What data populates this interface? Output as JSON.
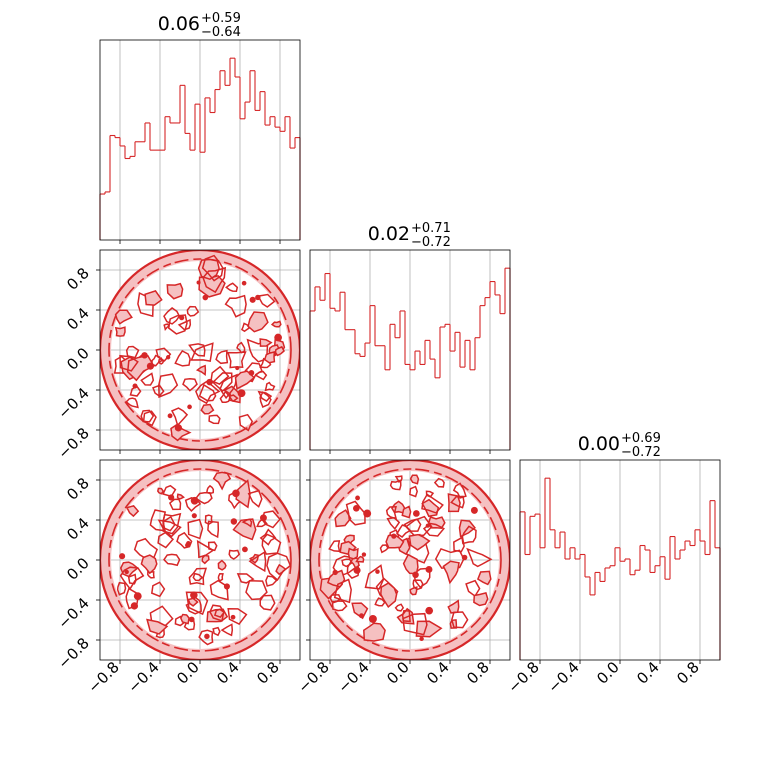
{
  "chart_data": {
    "type": "corner",
    "accent_color": "#d62728",
    "grid": true,
    "axis_range": [
      -1.0,
      1.0
    ],
    "tick_values": [
      -0.8,
      -0.4,
      0.0,
      0.4,
      0.8
    ],
    "tick_labels": [
      "−0.8",
      "−0.4",
      "0.0",
      "0.4",
      "0.8"
    ],
    "histograms": [
      {
        "type": "histogram",
        "title_value": "0.06",
        "title_plus": "+0.59",
        "title_minus": "−0.64",
        "bins": 40,
        "counts": [
          22,
          23,
          50,
          49,
          45,
          39,
          40,
          47,
          47,
          56,
          43,
          43,
          43,
          59,
          56,
          56,
          74,
          51,
          43,
          65,
          42,
          68,
          61,
          72,
          81,
          74,
          87,
          78,
          58,
          66,
          81,
          62,
          71,
          55,
          59,
          54,
          52,
          59,
          44,
          49
        ]
      },
      {
        "type": "histogram",
        "title_value": "0.02",
        "title_plus": "+0.71",
        "title_minus": "−0.72",
        "bins": 40,
        "counts": [
          52,
          61,
          56,
          66,
          53,
          52,
          59,
          45,
          45,
          36,
          35,
          40,
          54,
          39,
          39,
          30,
          47,
          42,
          52,
          32,
          30,
          37,
          32,
          41,
          34,
          27,
          46,
          47,
          37,
          44,
          31,
          41,
          30,
          42,
          54,
          57,
          63,
          58,
          51,
          68
        ]
      },
      {
        "type": "histogram",
        "title_value": "0.00",
        "title_plus": "+0.69",
        "title_minus": "−0.72",
        "bins": 40,
        "counts": [
          66,
          47,
          64,
          65,
          50,
          81,
          58,
          50,
          57,
          45,
          50,
          45,
          47,
          37,
          29,
          39,
          35,
          41,
          42,
          50,
          44,
          45,
          38,
          40,
          51,
          49,
          39,
          42,
          46,
          36,
          55,
          45,
          49,
          53,
          51,
          58,
          53,
          47,
          71,
          50
        ]
      }
    ],
    "contour_panels": [
      {
        "type": "contour",
        "x_param": 1,
        "y_param": 2,
        "support": "disk",
        "radius": 1.0
      },
      {
        "type": "contour",
        "x_param": 1,
        "y_param": 3,
        "support": "disk",
        "radius": 1.0
      },
      {
        "type": "contour",
        "x_param": 2,
        "y_param": 3,
        "support": "disk",
        "radius": 1.0
      }
    ]
  }
}
